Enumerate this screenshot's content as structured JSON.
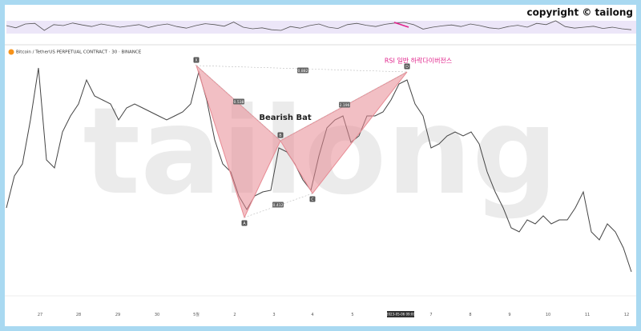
{
  "chart_data": {
    "type": "line",
    "header": "Bitcoin / TetherUS PERPETUAL CONTRACT · 30 · BINANCE",
    "copyright": "copyright © tailong",
    "watermark": "tailong",
    "pattern_title": "Bearish Bat",
    "divergence_note": "RSI 일반 하락다이버전스",
    "series": [
      {
        "name": "BTCUSDT",
        "color": "#444444",
        "values": [
          100,
          140,
          155,
          210,
          275,
          160,
          150,
          195,
          215,
          230,
          260,
          240,
          235,
          230,
          210,
          225,
          230,
          225,
          220,
          215,
          210,
          215,
          220,
          230,
          270,
          235,
          185,
          155,
          145,
          115,
          98,
          115,
          120,
          122,
          175,
          170,
          155,
          135,
          122,
          165,
          200,
          210,
          215,
          182,
          190,
          215,
          215,
          220,
          235,
          255,
          260,
          230,
          215,
          175,
          180,
          190,
          195,
          190,
          195,
          180,
          145,
          120,
          100,
          75,
          70,
          85,
          80,
          90,
          80,
          85,
          85,
          100,
          120,
          70,
          60,
          80,
          70,
          50,
          20
        ]
      }
    ],
    "ylim": [
      0,
      285
    ],
    "xlim": [
      0,
      78
    ],
    "pattern": {
      "color": "#e88a93",
      "points": [
        {
          "label": "X",
          "x": 23.7,
          "value": 278
        },
        {
          "label": "A",
          "x": 29.7,
          "value": 88
        },
        {
          "label": "B",
          "x": 34.2,
          "value": 184
        },
        {
          "label": "C",
          "x": 38.2,
          "value": 118
        },
        {
          "label": "D",
          "x": 50,
          "value": 270
        }
      ],
      "ratios": [
        "0.538",
        "0.412",
        "2.196",
        "0.882"
      ]
    },
    "rsi": {
      "color": "#555555",
      "ylim": [
        0,
        100
      ],
      "band": [
        30,
        70
      ],
      "values": [
        55,
        48,
        60,
        62,
        40,
        58,
        55,
        63,
        57,
        52,
        60,
        55,
        50,
        54,
        58,
        49,
        56,
        60,
        52,
        47,
        55,
        61,
        58,
        53,
        66,
        50,
        45,
        48,
        42,
        40,
        52,
        47,
        55,
        60,
        50,
        46,
        58,
        62,
        56,
        52,
        59,
        63,
        65,
        58,
        44,
        50,
        54,
        57,
        52,
        60,
        55,
        48,
        45,
        52,
        56,
        50,
        62,
        58,
        70,
        52,
        47,
        50,
        53,
        46,
        50,
        45,
        42
      ]
    },
    "date_labels": [
      "27",
      "28",
      "29",
      "30",
      "5월",
      "2",
      "3",
      "4",
      "5",
      "2023-05-06  09:00",
      "7",
      "8",
      "9",
      "10",
      "11",
      "12"
    ]
  }
}
